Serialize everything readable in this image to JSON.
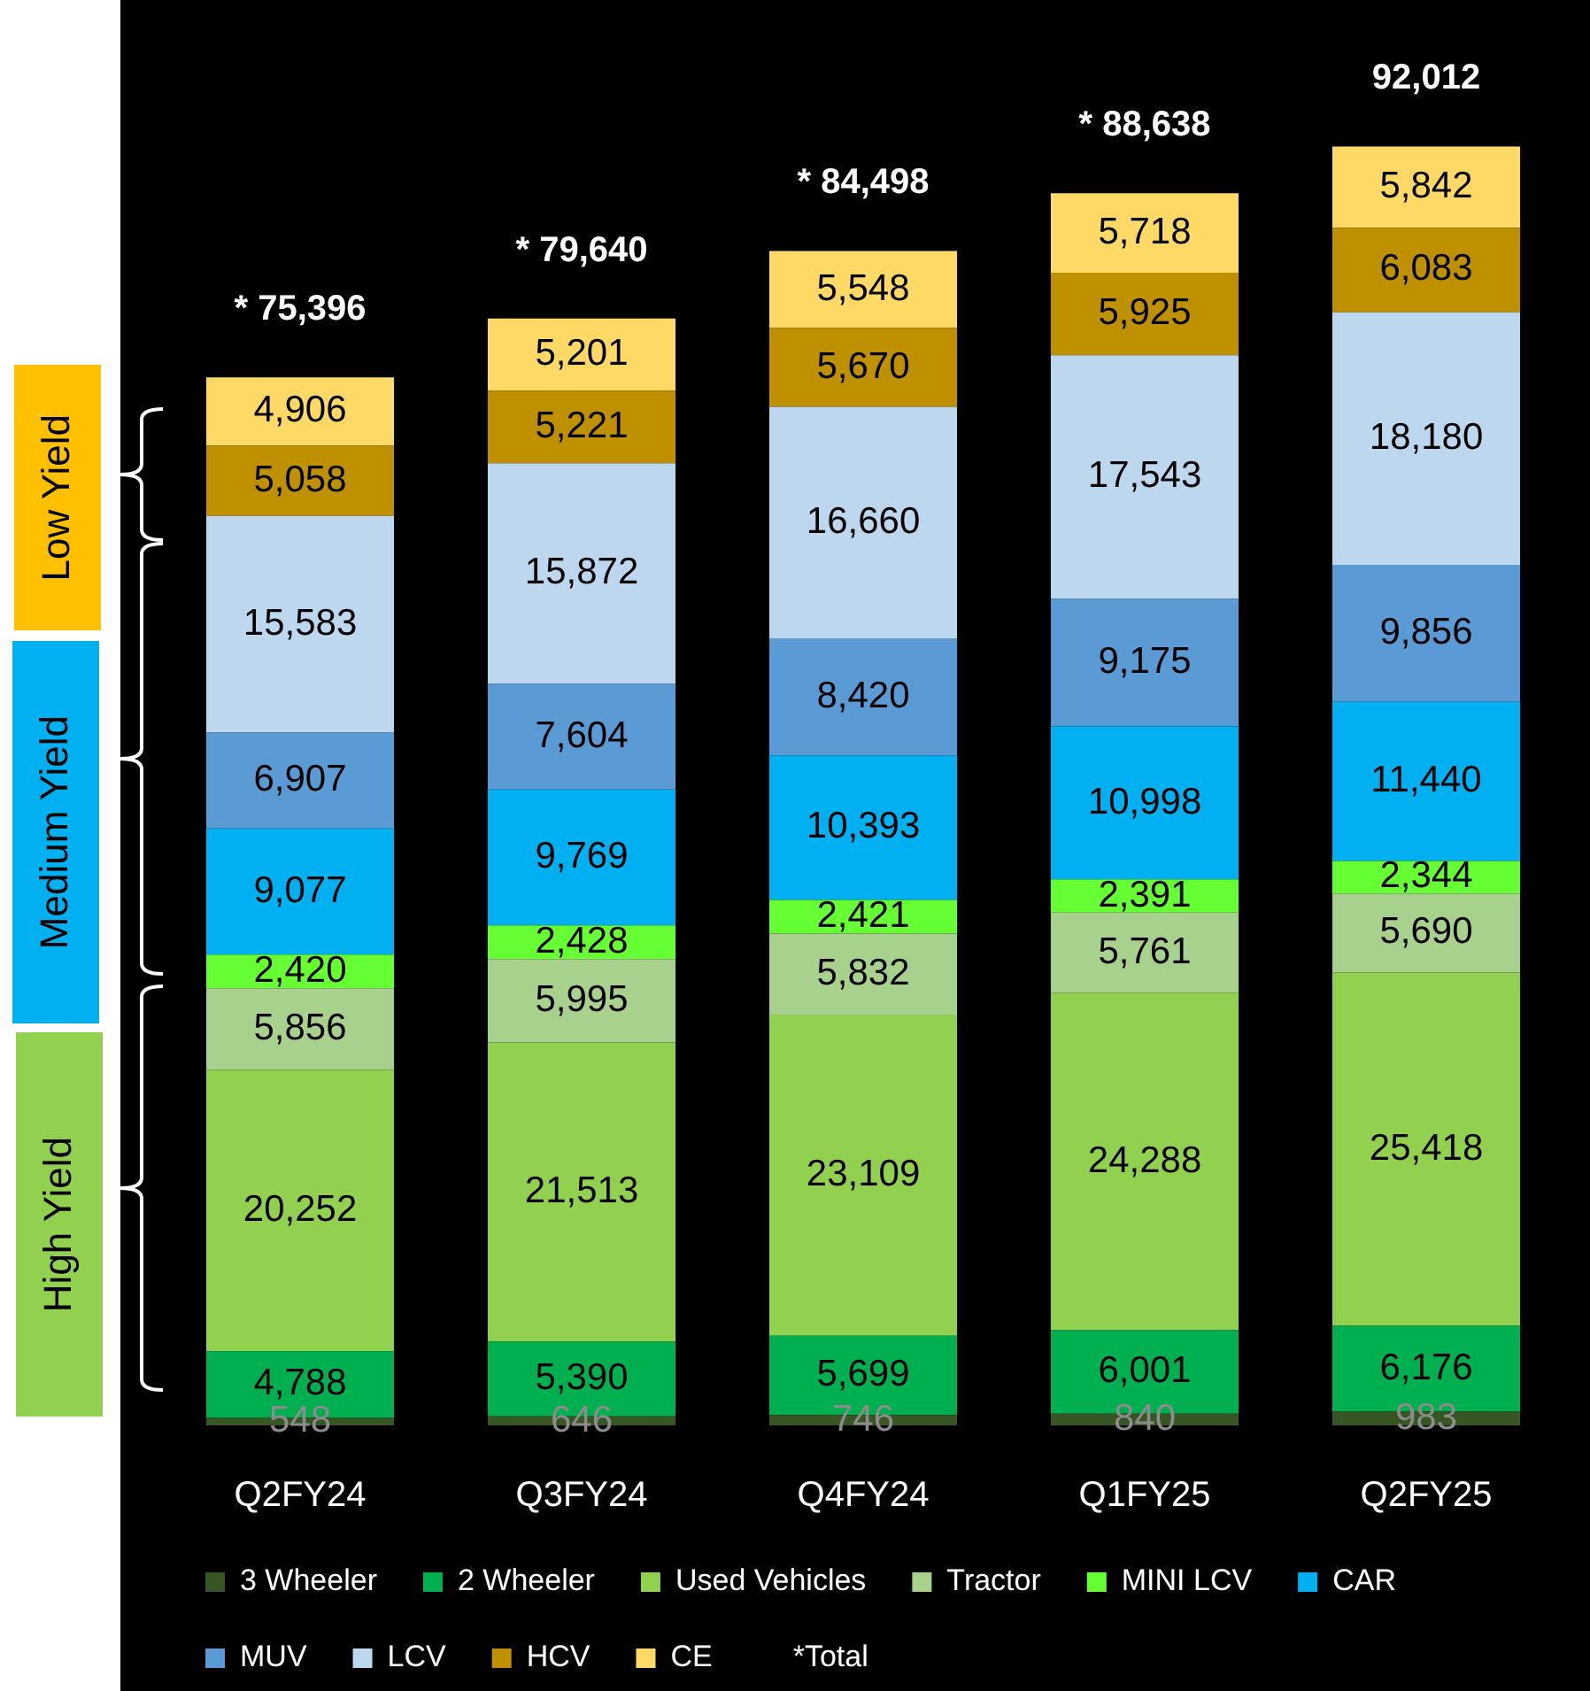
{
  "chart_data": {
    "type": "bar",
    "stacked": true,
    "categories": [
      "Q2FY24",
      "Q3FY24",
      "Q4FY24",
      "Q1FY25",
      "Q2FY25"
    ],
    "series": [
      {
        "name": "3 Wheeler",
        "color": "#375623",
        "values": [
          548,
          646,
          746,
          840,
          983
        ],
        "value_labels": [
          "548",
          "646",
          "746",
          "840",
          "983"
        ]
      },
      {
        "name": "2 Wheeler",
        "color": "#00b050",
        "values": [
          4788,
          5390,
          5699,
          6001,
          6176
        ],
        "value_labels": [
          "4,788",
          "5,390",
          "5,699",
          "6,001",
          "6,176"
        ]
      },
      {
        "name": "Used Vehicles",
        "color": "#92d050",
        "values": [
          20252,
          21513,
          23109,
          24288,
          25418
        ],
        "value_labels": [
          "20,252",
          "21,513",
          "23,109",
          "24,288",
          "25,418"
        ]
      },
      {
        "name": "Tractor",
        "color": "#a9d18e",
        "values": [
          5856,
          5995,
          5832,
          5761,
          5690
        ],
        "value_labels": [
          "5,856",
          "5,995",
          "5,832",
          "5,761",
          "5,690"
        ]
      },
      {
        "name": "MINI LCV",
        "color": "#66ff33",
        "values": [
          2420,
          2428,
          2421,
          2391,
          2344
        ],
        "value_labels": [
          "2,420",
          "2,428",
          "2,421",
          "2,391",
          "2,344"
        ]
      },
      {
        "name": "CAR",
        "color": "#00b0f0",
        "values": [
          9077,
          9769,
          10393,
          10998,
          11440
        ],
        "value_labels": [
          "9,077",
          "9,769",
          "10,393",
          "10,998",
          "11,440"
        ]
      },
      {
        "name": "MUV",
        "color": "#5b9bd5",
        "values": [
          6907,
          7604,
          8420,
          9175,
          9856
        ],
        "value_labels": [
          "6,907",
          "7,604",
          "8,420",
          "9,175",
          "9,856"
        ]
      },
      {
        "name": "LCV",
        "color": "#bdd7ee",
        "values": [
          15583,
          15872,
          16660,
          17543,
          18180
        ],
        "value_labels": [
          "15,583",
          "15,872",
          "16,660",
          "17,543",
          "18,180"
        ]
      },
      {
        "name": "HCV",
        "color": "#bf9000",
        "values": [
          5058,
          5221,
          5670,
          5925,
          6083
        ],
        "value_labels": [
          "5,058",
          "5,221",
          "5,670",
          "5,925",
          "6,083"
        ]
      },
      {
        "name": "CE",
        "color": "#ffd966",
        "values": [
          4906,
          5201,
          5548,
          5718,
          5842
        ],
        "value_labels": [
          "4,906",
          "5,201",
          "5,548",
          "5,718",
          "5,842"
        ]
      }
    ],
    "totals": [
      "* 75,396",
      "* 79,640",
      "* 84,498",
      "* 88,638",
      "92,012"
    ],
    "legend": "bottom",
    "tick_labels": "x",
    "annotations": [
      "Low Yield",
      "Medium Yield",
      "High Yield",
      "*Total"
    ]
  }
}
